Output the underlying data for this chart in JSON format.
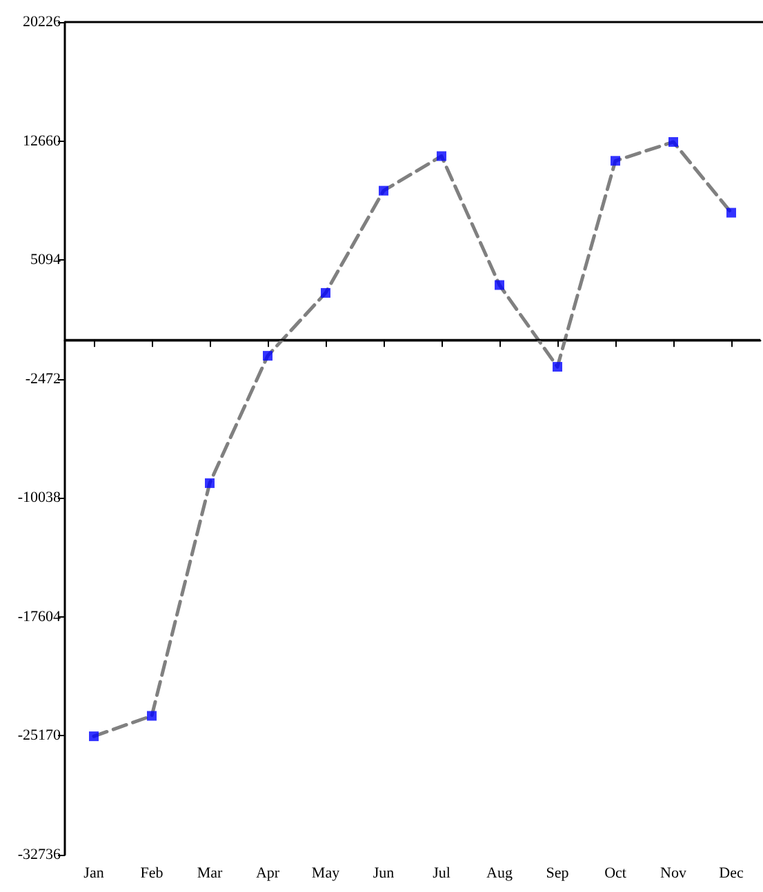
{
  "chart_data": {
    "type": "line",
    "categories": [
      "Jan",
      "Feb",
      "Mar",
      "Apr",
      "May",
      "Jun",
      "Jul",
      "Aug",
      "Sep",
      "Oct",
      "Nov",
      "Dec"
    ],
    "series": [
      {
        "color": "#808080",
        "line_style": "dashed",
        "marker": "none",
        "values": [
          -25200,
          -23900,
          -9100,
          -1000,
          3000,
          9500,
          11700,
          3500,
          -1700,
          11400,
          12600,
          8100
        ]
      },
      {
        "type": "scatter",
        "color": "#0000ff",
        "marker": "square",
        "values": [
          -25200,
          -23900,
          -9100,
          -1000,
          3000,
          9500,
          11700,
          3500,
          -1700,
          11400,
          12600,
          8100
        ]
      }
    ],
    "ylim": [
      -32736,
      20226
    ],
    "yticks": [
      -32736,
      -25170,
      -17604,
      -10038,
      -2472,
      5094,
      12660,
      20226
    ],
    "ref_lines": [
      {
        "axis": "y",
        "value": 0,
        "color": "#000000",
        "line_style": "solid"
      }
    ],
    "grid": false
  }
}
